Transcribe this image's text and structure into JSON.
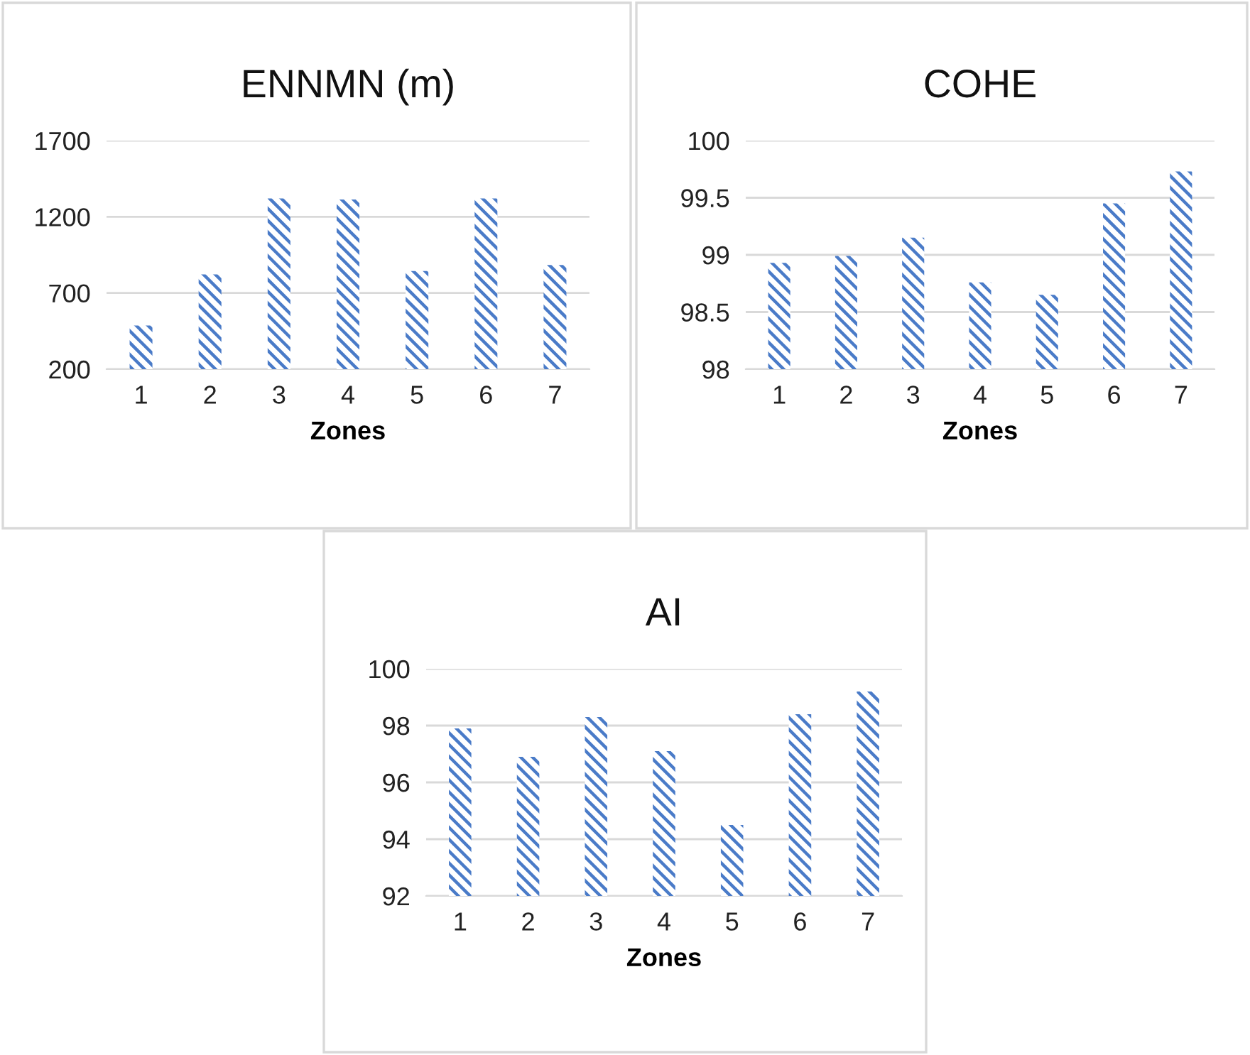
{
  "chart_data": [
    {
      "type": "bar",
      "title": "ENNMN (m)",
      "xlabel": "Zones",
      "categories": [
        "1",
        "2",
        "3",
        "4",
        "5",
        "6",
        "7"
      ],
      "series": [
        {
          "color": "#4a7bc8",
          "values": [
            486,
            822,
            1320,
            1313,
            844,
            1320,
            884
          ]
        }
      ],
      "ylim": [
        200,
        1700
      ],
      "yticks": [
        200,
        700,
        1200,
        1700
      ],
      "grid": "y",
      "legend": false
    },
    {
      "type": "bar",
      "title": "COHE",
      "xlabel": "Zones",
      "categories": [
        "1",
        "2",
        "3",
        "4",
        "5",
        "6",
        "7"
      ],
      "series": [
        {
          "color": "#4a7bc8",
          "values": [
            98.93,
            98.99,
            99.15,
            98.76,
            98.65,
            99.45,
            99.73
          ]
        }
      ],
      "ylim": [
        98,
        100
      ],
      "yticks": [
        98,
        98.5,
        99,
        99.5,
        100
      ],
      "grid": "y",
      "legend": false
    },
    {
      "type": "bar",
      "title": "AI",
      "xlabel": "Zones",
      "categories": [
        "1",
        "2",
        "3",
        "4",
        "5",
        "6",
        "7"
      ],
      "series": [
        {
          "color": "#4a7bc8",
          "values": [
            97.9,
            96.9,
            98.3,
            97.1,
            94.5,
            98.4,
            99.2
          ]
        }
      ],
      "ylim": [
        92,
        100
      ],
      "yticks": [
        92,
        94,
        96,
        98,
        100
      ],
      "grid": "y",
      "legend": false
    }
  ]
}
